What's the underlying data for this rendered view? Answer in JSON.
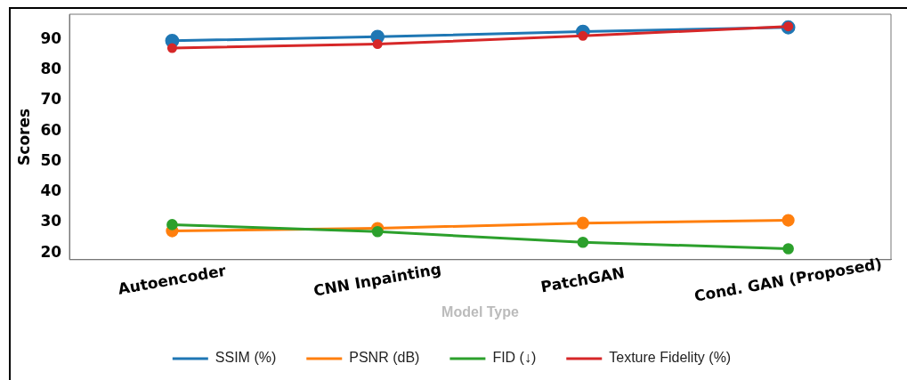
{
  "chart_data": {
    "type": "line",
    "xlabel": "Model Type",
    "ylabel": "Scores",
    "categories": [
      "Autoencoder",
      "CNN Inpainting",
      "PatchGAN",
      "Cond. GAN (Proposed)"
    ],
    "series": [
      {
        "name": "SSIM (%)",
        "color": "#1f77b4",
        "values": [
          89.6,
          90.9,
          92.6,
          94.0
        ]
      },
      {
        "name": "PSNR (dB)",
        "color": "#ff7f0e",
        "values": [
          27.2,
          28.1,
          29.8,
          30.7
        ]
      },
      {
        "name": "FID (↓)",
        "color": "#2ca02c",
        "values": [
          29.3,
          27.0,
          23.5,
          21.4
        ]
      },
      {
        "name": "Texture Fidelity (%)",
        "color": "#d62728",
        "values": [
          87.2,
          88.5,
          91.2,
          94.3
        ]
      }
    ],
    "ylim": [
      17.8,
      98.3
    ],
    "yticks": [
      20,
      30,
      40,
      50,
      60,
      70,
      80,
      90
    ],
    "grid": false,
    "legend": "bottom",
    "marker": "circle",
    "line_style": "solid"
  }
}
